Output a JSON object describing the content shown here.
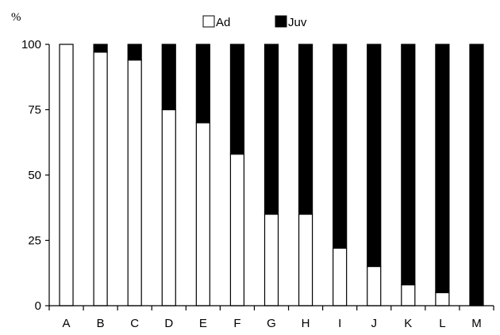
{
  "chart_data": {
    "type": "bar",
    "stacked": true,
    "percent": true,
    "y_unit_label": "%",
    "categories": [
      "A",
      "B",
      "C",
      "D",
      "E",
      "F",
      "G",
      "H",
      "I",
      "J",
      "K",
      "L",
      "M"
    ],
    "series": [
      {
        "name": "Ad",
        "color": "#ffffff",
        "values": [
          100,
          97,
          94,
          75,
          70,
          58,
          35,
          35,
          22,
          15,
          8,
          5,
          0
        ]
      },
      {
        "name": "Juv",
        "color": "#000000",
        "values": [
          0,
          3,
          6,
          25,
          30,
          42,
          65,
          65,
          78,
          85,
          92,
          95,
          100
        ]
      }
    ],
    "ylim": [
      0,
      100
    ],
    "yticks": [
      0,
      25,
      50,
      75,
      100
    ],
    "legend_position": "top-center",
    "grid": false
  }
}
